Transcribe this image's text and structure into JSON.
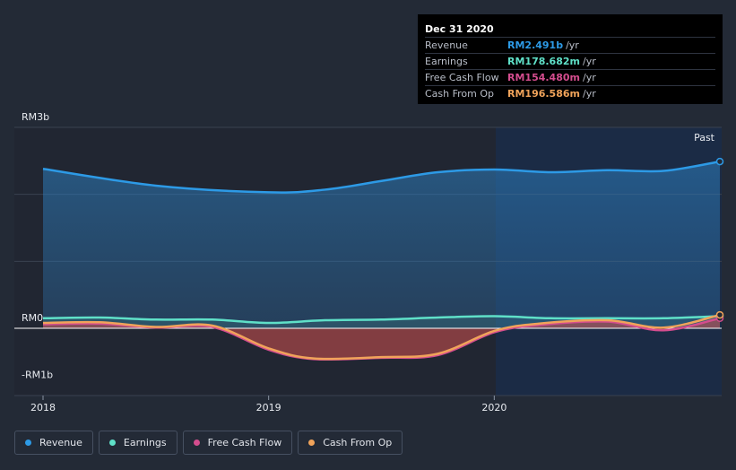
{
  "chart_data": {
    "type": "area",
    "y_ticks": [
      "RM3b",
      "RM0",
      "-RM1b"
    ],
    "x_ticks": [
      "2018",
      "2019",
      "2020"
    ],
    "ylim": [
      -1,
      3
    ],
    "xlim": [
      2018,
      2021
    ],
    "past_label": "Past",
    "series": [
      {
        "name": "Revenue",
        "color": "#2d9ae6",
        "points": [
          [
            2018.0,
            2.38
          ],
          [
            2018.5,
            2.13
          ],
          [
            2019.0,
            2.03
          ],
          [
            2019.25,
            2.07
          ],
          [
            2019.5,
            2.2
          ],
          [
            2019.75,
            2.33
          ],
          [
            2020.0,
            2.37
          ],
          [
            2020.25,
            2.33
          ],
          [
            2020.5,
            2.36
          ],
          [
            2020.75,
            2.35
          ],
          [
            2021.0,
            2.49
          ]
        ]
      },
      {
        "name": "Earnings",
        "color": "#5fe0c8",
        "points": [
          [
            2018.0,
            0.15
          ],
          [
            2018.25,
            0.16
          ],
          [
            2018.5,
            0.13
          ],
          [
            2018.75,
            0.13
          ],
          [
            2019.0,
            0.08
          ],
          [
            2019.25,
            0.12
          ],
          [
            2019.5,
            0.13
          ],
          [
            2019.75,
            0.16
          ],
          [
            2020.0,
            0.18
          ],
          [
            2020.25,
            0.15
          ],
          [
            2020.5,
            0.15
          ],
          [
            2020.75,
            0.15
          ],
          [
            2021.0,
            0.18
          ]
        ]
      },
      {
        "name": "Free Cash Flow",
        "color": "#d44d8e",
        "points": [
          [
            2018.0,
            0.06
          ],
          [
            2018.25,
            0.07
          ],
          [
            2018.5,
            0.01
          ],
          [
            2018.75,
            0.02
          ],
          [
            2019.0,
            -0.32
          ],
          [
            2019.2,
            -0.46
          ],
          [
            2019.5,
            -0.44
          ],
          [
            2019.75,
            -0.4
          ],
          [
            2020.0,
            -0.06
          ],
          [
            2020.2,
            0.05
          ],
          [
            2020.5,
            0.1
          ],
          [
            2020.75,
            -0.03
          ],
          [
            2021.0,
            0.15
          ]
        ]
      },
      {
        "name": "Cash From Op",
        "color": "#f0a35a",
        "points": [
          [
            2018.0,
            0.08
          ],
          [
            2018.25,
            0.09
          ],
          [
            2018.5,
            0.02
          ],
          [
            2018.75,
            0.04
          ],
          [
            2019.0,
            -0.3
          ],
          [
            2019.2,
            -0.45
          ],
          [
            2019.5,
            -0.43
          ],
          [
            2019.75,
            -0.38
          ],
          [
            2020.0,
            -0.04
          ],
          [
            2020.2,
            0.07
          ],
          [
            2020.5,
            0.12
          ],
          [
            2020.75,
            0.01
          ],
          [
            2021.0,
            0.2
          ]
        ]
      }
    ]
  },
  "tooltip": {
    "date": "Dec 31 2020",
    "rows": [
      {
        "name": "Revenue",
        "value": "RM2.491b",
        "unit": "/yr",
        "color": "#2d9ae6"
      },
      {
        "name": "Earnings",
        "value": "RM178.682m",
        "unit": "/yr",
        "color": "#5fe0c8"
      },
      {
        "name": "Free Cash Flow",
        "value": "RM154.480m",
        "unit": "/yr",
        "color": "#d44d8e"
      },
      {
        "name": "Cash From Op",
        "value": "RM196.586m",
        "unit": "/yr",
        "color": "#f0a35a"
      }
    ]
  },
  "legend": [
    {
      "label": "Revenue",
      "color": "#2d9ae6"
    },
    {
      "label": "Earnings",
      "color": "#5fe0c8"
    },
    {
      "label": "Free Cash Flow",
      "color": "#d44d8e"
    },
    {
      "label": "Cash From Op",
      "color": "#f0a35a"
    }
  ]
}
